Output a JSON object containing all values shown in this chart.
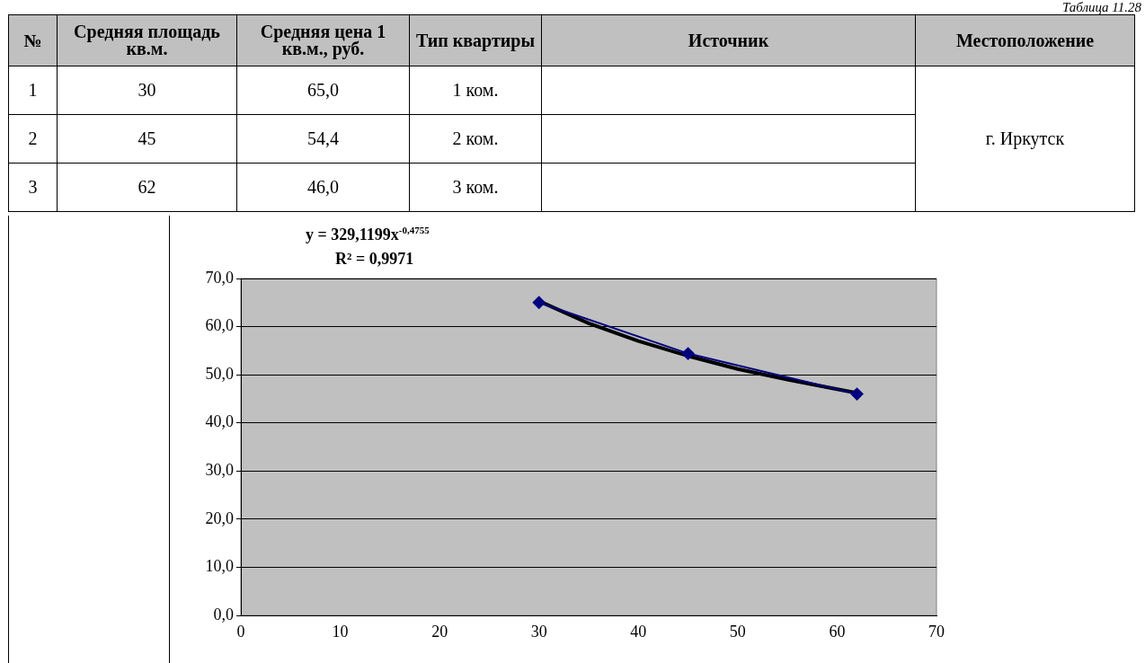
{
  "chart_data": {
    "type": "line",
    "x": [
      30,
      45,
      62
    ],
    "series": [
      {
        "color": "#000080",
        "values": [
          65.0,
          54.4,
          46.0
        ],
        "marker": "diamond"
      },
      {
        "color": "#000000",
        "x": [
          30,
          35,
          40,
          45,
          50,
          55,
          62
        ],
        "values": [
          65.3,
          60.7,
          57.0,
          53.9,
          51.2,
          49.0,
          46.2
        ],
        "marker": "none"
      }
    ],
    "xlim": [
      0,
      70
    ],
    "xticks": [
      0,
      10,
      20,
      30,
      40,
      50,
      60,
      70
    ],
    "ylim": [
      0,
      70
    ],
    "yticks": [
      {
        "value": 0,
        "label": "0,0"
      },
      {
        "value": 10,
        "label": "10,0"
      },
      {
        "value": 20,
        "label": "20,0"
      },
      {
        "value": 30,
        "label": "30,0"
      },
      {
        "value": 40,
        "label": "40,0"
      },
      {
        "value": 50,
        "label": "50,0"
      },
      {
        "value": 60,
        "label": "60,0"
      },
      {
        "value": 70,
        "label": "70,0"
      }
    ],
    "grid": "y",
    "legend": false,
    "annotations": [
      "Таблица 11.28",
      "y = 329,1199x$^{-0,4755}$",
      "R² = 0,9971",
      "№",
      "Средняя площадь кв.м.",
      "Средняя цена 1 кв.м., руб.",
      "Тип квартиры",
      "Источник",
      "Местоположение",
      "1",
      "2",
      "3",
      "30",
      "45",
      "62",
      "65,0",
      "54,4",
      "46,0",
      "1 ком.",
      "2 ком.",
      "3 ком.",
      "г. Иркутск"
    ]
  }
}
